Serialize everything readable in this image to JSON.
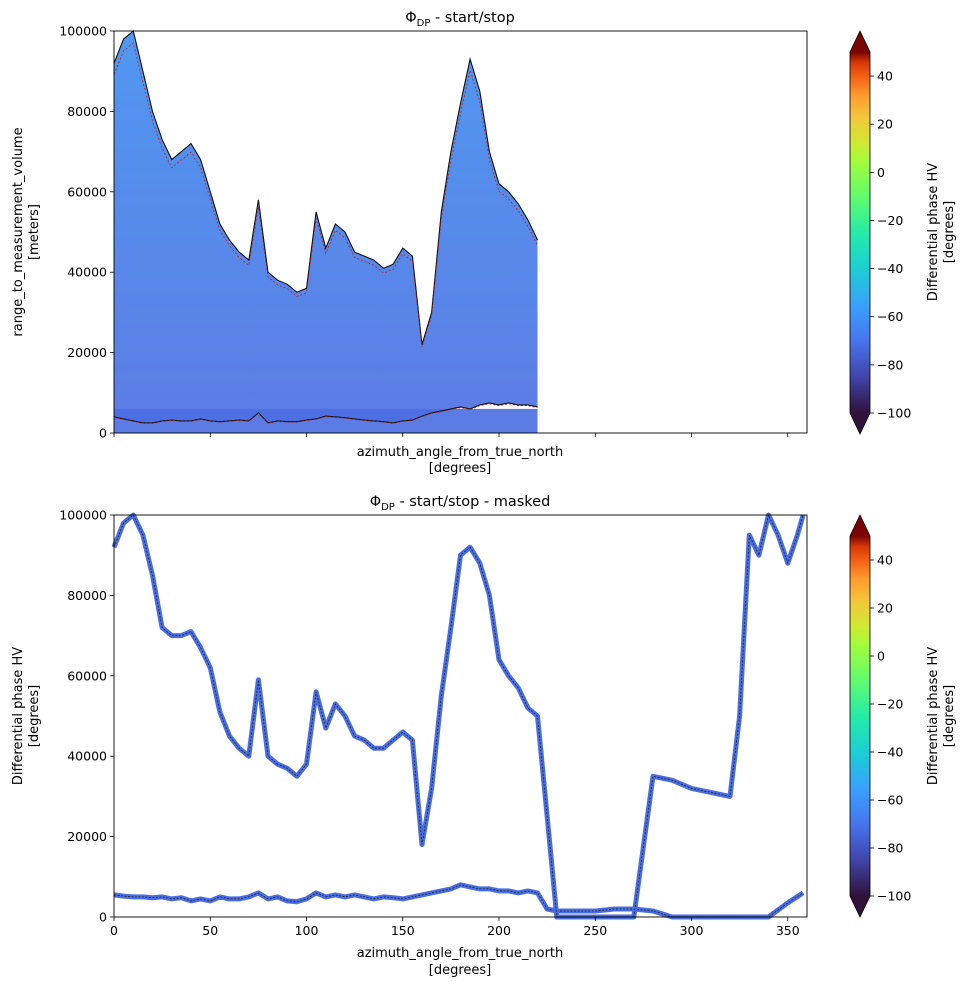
{
  "chart_data": [
    {
      "type": "heatmap",
      "title": "ΦDP - start/stop",
      "title_main": "Φ",
      "title_sub": "DP",
      "title_rest": " - start/stop",
      "xlabel": "azimuth_angle_from_true_north",
      "xlabel_unit": "[degrees]",
      "ylabel": "range_to_measurement_volume",
      "ylabel_unit": "[meters]",
      "xlim": [
        0,
        360
      ],
      "ylim": [
        0,
        100000
      ],
      "x_ticks": [
        0,
        50,
        100,
        150,
        200,
        250,
        300,
        350
      ],
      "x_tick_labels_shown": false,
      "y_ticks": [
        0,
        20000,
        40000,
        60000,
        80000,
        100000
      ],
      "y_tick_labels": [
        "0",
        "20000",
        "40000",
        "60000",
        "80000",
        "100000"
      ],
      "series": [
        {
          "name": "start",
          "x": [
            0,
            5,
            10,
            15,
            20,
            25,
            30,
            35,
            40,
            45,
            50,
            55,
            60,
            65,
            70,
            75,
            80,
            85,
            90,
            95,
            100,
            105,
            110,
            115,
            120,
            125,
            130,
            135,
            140,
            145,
            150,
            155,
            160,
            165,
            170,
            175,
            180,
            185,
            190,
            195,
            200,
            205,
            210,
            215,
            220
          ],
          "y": [
            4000,
            3500,
            3000,
            2500,
            2500,
            3000,
            3200,
            3000,
            3000,
            3500,
            3000,
            2800,
            3000,
            3200,
            3000,
            5000,
            2500,
            3000,
            2800,
            2800,
            3200,
            3500,
            4200,
            4000,
            3800,
            3500,
            3200,
            3000,
            2800,
            2500,
            3000,
            3200,
            4200,
            5000,
            5500,
            6000,
            6500,
            6000,
            7000,
            7500,
            7000,
            7500,
            7000,
            7000,
            6500
          ]
        },
        {
          "name": "stop",
          "x": [
            0,
            5,
            10,
            15,
            20,
            25,
            30,
            35,
            40,
            45,
            50,
            55,
            60,
            65,
            70,
            75,
            80,
            85,
            90,
            95,
            100,
            105,
            110,
            115,
            120,
            125,
            130,
            135,
            140,
            145,
            150,
            155,
            160,
            165,
            170,
            175,
            180,
            185,
            190,
            195,
            200,
            205,
            210,
            215,
            220
          ],
          "y": [
            92000,
            98000,
            100000,
            90000,
            80000,
            73000,
            68000,
            70000,
            72000,
            68000,
            60000,
            52000,
            48000,
            45000,
            43000,
            58000,
            40000,
            38000,
            37000,
            35000,
            36000,
            55000,
            46000,
            52000,
            50000,
            45000,
            44000,
            43000,
            41000,
            42000,
            46000,
            44000,
            22000,
            30000,
            55000,
            70000,
            82000,
            93000,
            85000,
            70000,
            62000,
            60000,
            57000,
            53000,
            48000
          ]
        }
      ],
      "colorbar": {
        "label": "Differential phase HV",
        "unit": "[degrees]",
        "min": -100,
        "max": 50,
        "ticks": [
          -100,
          -80,
          -60,
          -40,
          -20,
          0,
          20,
          40
        ],
        "tick_labels": [
          "−100",
          "−80",
          "−60",
          "−40",
          "−20",
          "0",
          "20",
          "40"
        ],
        "extend": "both",
        "colormap": "turbo"
      }
    },
    {
      "type": "heatmap",
      "title": "ΦDP - start/stop - masked",
      "title_main": "Φ",
      "title_sub": "DP",
      "title_rest": " - start/stop - masked",
      "xlabel": "azimuth_angle_from_true_north",
      "xlabel_unit": "[degrees]",
      "ylabel": "Differential phase HV",
      "ylabel_unit": "[degrees]",
      "xlim": [
        0,
        360
      ],
      "ylim": [
        0,
        100000
      ],
      "x_ticks": [
        0,
        50,
        100,
        150,
        200,
        250,
        300,
        350
      ],
      "x_tick_labels": [
        "0",
        "50",
        "100",
        "150",
        "200",
        "250",
        "300",
        "350"
      ],
      "y_ticks": [
        0,
        20000,
        40000,
        60000,
        80000,
        100000
      ],
      "y_tick_labels": [
        "0",
        "20000",
        "40000",
        "60000",
        "80000",
        "100000"
      ],
      "series": [
        {
          "name": "start",
          "x": [
            0,
            5,
            10,
            15,
            20,
            25,
            30,
            35,
            40,
            45,
            50,
            55,
            60,
            65,
            70,
            75,
            80,
            85,
            90,
            95,
            100,
            105,
            110,
            115,
            120,
            125,
            130,
            135,
            140,
            145,
            150,
            155,
            160,
            165,
            170,
            175,
            180,
            185,
            190,
            195,
            200,
            205,
            210,
            215,
            220,
            225,
            230,
            240,
            250,
            260,
            270,
            280,
            290,
            300,
            310,
            320,
            330,
            340,
            350,
            358
          ],
          "y": [
            5500,
            5200,
            5000,
            5000,
            4800,
            5000,
            4500,
            4800,
            4000,
            4500,
            4000,
            5000,
            4500,
            4500,
            5000,
            6000,
            4500,
            5000,
            4000,
            3800,
            4500,
            6000,
            5000,
            5500,
            5000,
            5500,
            5000,
            4500,
            5000,
            4800,
            4500,
            5000,
            5500,
            6000,
            6500,
            7000,
            8000,
            7500,
            7000,
            7000,
            6500,
            6500,
            6000,
            6500,
            6000,
            2000,
            1500,
            1500,
            1500,
            2000,
            2000,
            1500,
            0,
            0,
            0,
            0,
            0,
            0,
            3500,
            6000
          ]
        },
        {
          "name": "stop",
          "x": [
            0,
            5,
            10,
            15,
            20,
            25,
            30,
            35,
            40,
            45,
            50,
            55,
            60,
            65,
            70,
            75,
            80,
            85,
            90,
            95,
            100,
            105,
            110,
            115,
            120,
            125,
            130,
            135,
            140,
            145,
            150,
            155,
            160,
            165,
            170,
            175,
            180,
            185,
            190,
            195,
            200,
            205,
            210,
            215,
            220,
            230,
            240,
            250,
            260,
            270,
            280,
            290,
            300,
            310,
            320,
            325,
            330,
            335,
            340,
            345,
            350,
            355,
            358
          ],
          "y": [
            92000,
            98000,
            100000,
            95000,
            85000,
            72000,
            70000,
            70000,
            71000,
            67000,
            62000,
            51000,
            45000,
            42000,
            40000,
            59000,
            40000,
            38000,
            37000,
            35000,
            38000,
            56000,
            47000,
            53000,
            50000,
            45000,
            44000,
            42000,
            42000,
            44000,
            46000,
            44000,
            18000,
            32000,
            55000,
            72000,
            90000,
            92000,
            88000,
            80000,
            64000,
            60000,
            57000,
            52000,
            50000,
            0,
            0,
            0,
            0,
            0,
            35000,
            34000,
            32000,
            31000,
            30000,
            50000,
            95000,
            90000,
            100000,
            95000,
            88000,
            95000,
            100000
          ]
        }
      ],
      "colorbar": {
        "label": "Differential phase HV",
        "unit": "[degrees]",
        "min": -100,
        "max": 50,
        "ticks": [
          -100,
          -80,
          -60,
          -40,
          -20,
          0,
          20,
          40
        ],
        "tick_labels": [
          "−100",
          "−80",
          "−60",
          "−40",
          "−20",
          "0",
          "20",
          "40"
        ],
        "extend": "both",
        "colormap": "turbo"
      }
    }
  ]
}
